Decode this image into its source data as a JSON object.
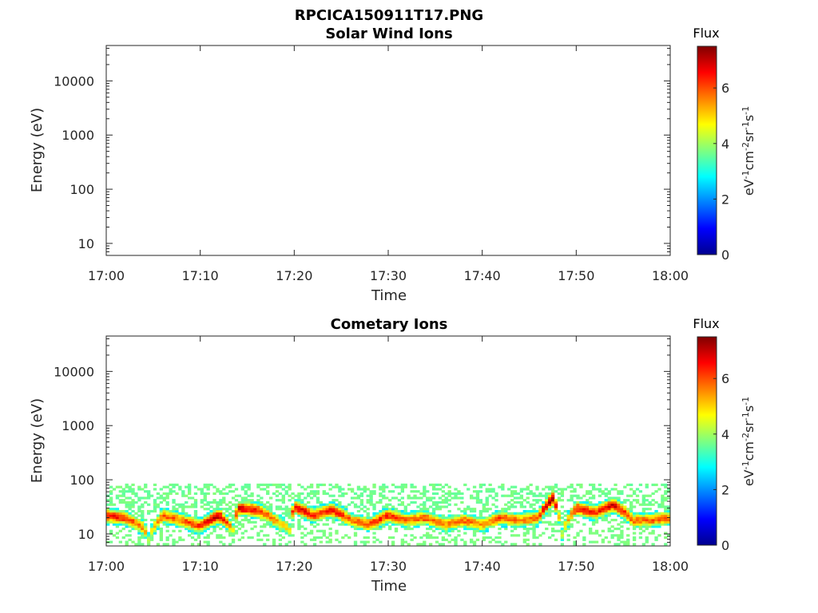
{
  "figure": {
    "title": "RPCICA150911T17.PNG"
  },
  "chart_data": [
    {
      "type": "heatmap",
      "title": "Solar Wind Ions",
      "xlabel": "Time",
      "ylabel": "Energy (eV)",
      "y_scale": "log",
      "ylim": [
        6,
        45000
      ],
      "x_range": [
        "17:00",
        "18:00"
      ],
      "x_ticks": [
        "17:00",
        "17:10",
        "17:20",
        "17:30",
        "17:40",
        "17:50",
        "18:00"
      ],
      "y_ticks": [
        "10",
        "100",
        "1000",
        "10000"
      ],
      "y_tick_values": [
        10,
        100,
        1000,
        10000
      ],
      "data": "empty",
      "colorbar": {
        "label": "Flux",
        "units": [
          "eV",
          "-1",
          "cm",
          "-2",
          "sr",
          "-1",
          "s",
          "-1"
        ],
        "ticks": [
          "0",
          "2",
          "4",
          "6"
        ],
        "tick_values": [
          0,
          2,
          4,
          6
        ],
        "range": [
          0,
          7.5
        ],
        "colormap": "jet"
      }
    },
    {
      "type": "heatmap",
      "title": "Cometary Ions",
      "xlabel": "Time",
      "ylabel": "Energy (eV)",
      "y_scale": "log",
      "ylim": [
        6,
        45000
      ],
      "x_range": [
        "17:00",
        "18:00"
      ],
      "x_ticks": [
        "17:00",
        "17:10",
        "17:20",
        "17:30",
        "17:40",
        "17:50",
        "18:00"
      ],
      "y_ticks": [
        "10",
        "100",
        "1000",
        "10000"
      ],
      "y_tick_values": [
        10,
        100,
        1000,
        10000
      ],
      "colorbar": {
        "label": "Flux",
        "units": [
          "eV",
          "-1",
          "cm",
          "-2",
          "sr",
          "-1",
          "s",
          "-1"
        ],
        "ticks": [
          "0",
          "2",
          "4",
          "6"
        ],
        "tick_values": [
          0,
          2,
          4,
          6
        ],
        "range": [
          0,
          7.5
        ],
        "colormap": "jet"
      },
      "data_x_minutes": [
        0,
        2,
        4,
        4.5,
        6,
        8,
        10,
        12,
        13.5,
        14,
        16,
        18,
        19.5,
        20,
        22,
        24,
        26,
        28,
        30,
        32,
        34,
        36,
        38,
        40,
        42,
        44,
        46,
        47.5,
        48.5,
        50,
        52,
        54,
        56,
        58,
        60
      ],
      "peak_energy_eV": [
        22,
        20,
        13,
        8,
        22,
        18,
        14,
        22,
        12,
        30,
        28,
        18,
        12,
        32,
        22,
        28,
        18,
        15,
        22,
        18,
        20,
        15,
        18,
        15,
        20,
        18,
        20,
        45,
        10,
        30,
        25,
        35,
        18,
        18,
        20
      ],
      "peak_flux": [
        6.5,
        6.2,
        5.5,
        4.5,
        6.0,
        5.8,
        6.2,
        7.0,
        5.0,
        6.8,
        6.5,
        5.5,
        4.8,
        6.8,
        6.2,
        6.5,
        5.8,
        6.0,
        6.3,
        5.8,
        6.0,
        5.5,
        5.8,
        5.5,
        6.0,
        5.5,
        6.2,
        7.3,
        4.5,
        6.5,
        6.2,
        6.8,
        5.8,
        5.8,
        6.0
      ]
    }
  ]
}
